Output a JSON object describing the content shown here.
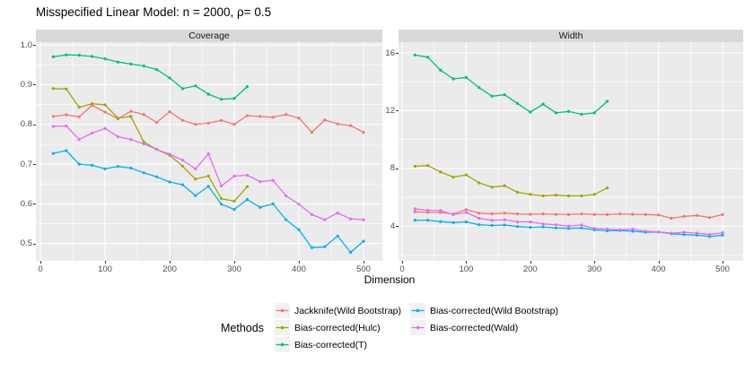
{
  "title": "Misspecified Linear Model: n = 2000, ρ= 0.5",
  "axes": {
    "x_label": "Dimension",
    "x_ticks": [
      0,
      100,
      200,
      300,
      400,
      500
    ],
    "x_minor": [
      50,
      150,
      250,
      350,
      450
    ]
  },
  "palette": {
    "jackknife_wild_bootstrap": "#F8766D",
    "bias_corrected_hulc": "#A3A500",
    "bias_corrected_t": "#00BF7D",
    "bias_corrected_wild_bootstrap": "#00B0F6",
    "bias_corrected_wald": "#E76BF3",
    "panel_background": "#EBEBEB",
    "strip_background": "#D9D9D9",
    "grid": "#FFFFFF",
    "tick_text": "#4D4D4D"
  },
  "legend": {
    "title": "Methods",
    "items": [
      {
        "label": "Jackknife(Wild Bootstrap)",
        "color": "#F8766D"
      },
      {
        "label": "Bias-corrected(Hulc)",
        "color": "#A3A500"
      },
      {
        "label": "Bias-corrected(T)",
        "color": "#00BF7D"
      },
      {
        "label": "Bias-corrected(Wild Bootstrap)",
        "color": "#00B0F6"
      },
      {
        "label": "Bias-corrected(Wald)",
        "color": "#E76BF3"
      }
    ]
  },
  "chart_data": [
    {
      "type": "line",
      "title": "Coverage",
      "xlabel": "Dimension",
      "x": [
        20,
        40,
        60,
        80,
        100,
        120,
        140,
        160,
        180,
        200,
        220,
        240,
        260,
        280,
        300,
        320,
        340,
        360,
        380,
        400,
        420,
        440,
        460,
        480,
        500
      ],
      "ylim": [
        0.4565,
        1.007
      ],
      "y_tick_labels": [
        "1.0",
        "0.9",
        "0.8",
        "0.7",
        "0.6",
        "0.5"
      ],
      "y_tick_values": [
        1.0,
        0.9,
        0.8,
        0.7,
        0.6,
        0.5
      ],
      "y_minor": [
        0.95,
        0.85,
        0.75,
        0.65,
        0.55
      ],
      "grid": true,
      "series": [
        {
          "name": "Jackknife(Wild Bootstrap)",
          "color": "#F8766D",
          "values": [
            0.82,
            0.824,
            0.819,
            0.848,
            0.831,
            0.814,
            0.833,
            0.825,
            0.805,
            0.832,
            0.81,
            0.8,
            0.803,
            0.81,
            0.8,
            0.822,
            0.82,
            0.818,
            0.825,
            0.816,
            0.78,
            0.811,
            0.801,
            0.797,
            0.78
          ]
        },
        {
          "name": "Bias-corrected(Hulc)",
          "color": "#A3A500",
          "values": [
            0.89,
            0.889,
            0.843,
            0.852,
            0.849,
            0.816,
            0.82,
            0.756,
            0.737,
            0.722,
            0.695,
            0.662,
            0.67,
            0.613,
            0.607,
            0.643
          ]
        },
        {
          "name": "Bias-corrected(T)",
          "color": "#00BF7D",
          "values": [
            0.97,
            0.975,
            0.974,
            0.971,
            0.965,
            0.957,
            0.952,
            0.947,
            0.938,
            0.917,
            0.89,
            0.897,
            0.876,
            0.863,
            0.865,
            0.895
          ]
        },
        {
          "name": "Bias-corrected(Wild Bootstrap)",
          "color": "#00B0F6",
          "values": [
            0.727,
            0.734,
            0.7,
            0.697,
            0.688,
            0.694,
            0.69,
            0.678,
            0.668,
            0.655,
            0.648,
            0.621,
            0.644,
            0.599,
            0.586,
            0.611,
            0.591,
            0.6,
            0.56,
            0.535,
            0.49,
            0.492,
            0.519,
            0.478,
            0.506
          ]
        },
        {
          "name": "Bias-corrected(Wald)",
          "color": "#E76BF3",
          "values": [
            0.795,
            0.796,
            0.762,
            0.778,
            0.79,
            0.769,
            0.762,
            0.751,
            0.737,
            0.725,
            0.71,
            0.688,
            0.726,
            0.645,
            0.67,
            0.672,
            0.656,
            0.659,
            0.62,
            0.599,
            0.573,
            0.56,
            0.577,
            0.562,
            0.56
          ]
        }
      ]
    },
    {
      "type": "line",
      "title": "Width",
      "xlabel": "Dimension",
      "x": [
        20,
        40,
        60,
        80,
        100,
        120,
        140,
        160,
        180,
        200,
        220,
        240,
        260,
        280,
        300,
        320,
        340,
        360,
        380,
        400,
        420,
        440,
        460,
        480,
        500
      ],
      "ylim": [
        1.6,
        16.745
      ],
      "y_tick_labels": [
        "16",
        "12",
        "8",
        "4"
      ],
      "y_tick_values": [
        16,
        12,
        8,
        4
      ],
      "y_minor": [
        14,
        10,
        6,
        2
      ],
      "grid": true,
      "series": [
        {
          "name": "Jackknife(Wild Bootstrap)",
          "color": "#F8766D",
          "values": [
            5.0,
            4.95,
            4.95,
            4.85,
            5.15,
            4.9,
            4.85,
            4.9,
            4.85,
            4.82,
            4.85,
            4.82,
            4.8,
            4.85,
            4.8,
            4.8,
            4.85,
            4.82,
            4.8,
            4.78,
            4.55,
            4.68,
            4.75,
            4.6,
            4.8
          ]
        },
        {
          "name": "Bias-corrected(Hulc)",
          "color": "#A3A500",
          "values": [
            8.15,
            8.2,
            7.75,
            7.4,
            7.55,
            7.0,
            6.7,
            6.8,
            6.35,
            6.2,
            6.1,
            6.15,
            6.1,
            6.1,
            6.2,
            6.65
          ]
        },
        {
          "name": "Bias-corrected(T)",
          "color": "#00BF7D",
          "values": [
            15.85,
            15.7,
            14.8,
            14.2,
            14.3,
            13.6,
            13.0,
            13.1,
            12.5,
            11.9,
            12.45,
            11.85,
            11.95,
            11.75,
            11.85,
            12.65
          ]
        },
        {
          "name": "Bias-corrected(Wild Bootstrap)",
          "color": "#00B0F6",
          "values": [
            4.42,
            4.42,
            4.32,
            4.25,
            4.3,
            4.1,
            4.05,
            4.08,
            3.98,
            3.92,
            3.95,
            3.88,
            3.85,
            3.88,
            3.75,
            3.68,
            3.7,
            3.65,
            3.58,
            3.6,
            3.48,
            3.42,
            3.38,
            3.28,
            3.38
          ]
        },
        {
          "name": "Bias-corrected(Wald)",
          "color": "#E76BF3",
          "values": [
            5.2,
            5.1,
            5.08,
            4.8,
            4.95,
            4.55,
            4.4,
            4.45,
            4.3,
            4.3,
            4.15,
            4.1,
            4.0,
            4.08,
            3.85,
            3.8,
            3.75,
            3.8,
            3.65,
            3.6,
            3.52,
            3.58,
            3.52,
            3.42,
            3.55
          ]
        }
      ]
    }
  ]
}
